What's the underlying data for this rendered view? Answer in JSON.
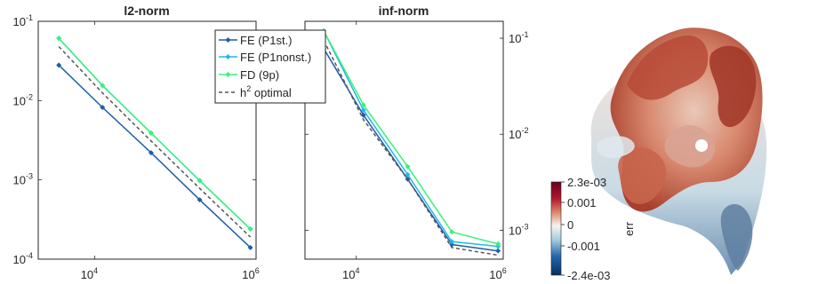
{
  "chart_data": [
    {
      "type": "line",
      "title": "l2-norm",
      "xscale": "log",
      "yscale": "log",
      "xlim": [
        2000,
        1000000
      ],
      "ylim": [
        0.0001,
        0.1
      ],
      "xticks": [
        {
          "base": "10",
          "exp": "4"
        },
        {
          "base": "10",
          "exp": "6"
        }
      ],
      "yticks": [
        {
          "base": "10",
          "exp": "-1"
        },
        {
          "base": "10",
          "exp": "-2"
        },
        {
          "base": "10",
          "exp": "-3"
        },
        {
          "base": "10",
          "exp": "-4"
        }
      ],
      "ytick_side": "left",
      "x": [
        3600,
        12500,
        50000,
        200000,
        850000
      ],
      "series": [
        {
          "name": "FE (P1st.)",
          "color": "#1f5ea8",
          "marker": "diamond",
          "dash": "solid",
          "values": [
            0.028,
            0.0082,
            0.0022,
            0.00056,
            0.00014
          ]
        },
        {
          "name": "FE (P1nonst.)",
          "color": "#21b8e8",
          "marker": "diamond",
          "dash": "solid",
          "values": [
            0.061,
            0.0155,
            0.0039,
            0.00098,
            0.00024
          ]
        },
        {
          "name": "FD (9p)",
          "color": "#3df07a",
          "marker": "diamond",
          "dash": "solid",
          "values": [
            0.061,
            0.0155,
            0.0039,
            0.00098,
            0.00024
          ]
        },
        {
          "name": "h2 optimal",
          "color": "#555555",
          "marker": "none",
          "dash": "dashed",
          "values": [
            0.048,
            0.0125,
            0.0031,
            0.00078,
            0.00019
          ]
        }
      ]
    },
    {
      "type": "line",
      "title": "inf-norm",
      "xscale": "log",
      "yscale": "log",
      "xlim": [
        2000,
        1000000
      ],
      "ylim": [
        0.0005,
        0.15
      ],
      "xticks": [
        {
          "base": "10",
          "exp": "4"
        },
        {
          "base": "10",
          "exp": "6"
        }
      ],
      "yticks": [
        {
          "base": "10",
          "exp": "-1"
        },
        {
          "base": "10",
          "exp": "-2"
        },
        {
          "base": "10",
          "exp": "-3"
        }
      ],
      "ytick_side": "right",
      "x": [
        3600,
        12500,
        50000,
        200000,
        850000
      ],
      "series": [
        {
          "name": "FE (P1st.)",
          "color": "#1f5ea8",
          "marker": "diamond",
          "dash": "solid",
          "values": [
            0.078,
            0.0158,
            0.0034,
            0.00071,
            0.00061
          ]
        },
        {
          "name": "FE (P1nonst.)",
          "color": "#21b8e8",
          "marker": "diamond",
          "dash": "solid",
          "values": [
            0.119,
            0.0178,
            0.0038,
            0.00076,
            0.00068
          ]
        },
        {
          "name": "FD (9p)",
          "color": "#3df07a",
          "marker": "diamond",
          "dash": "solid",
          "values": [
            0.119,
            0.0202,
            0.0046,
            0.00096,
            0.00072
          ]
        },
        {
          "name": "h2 optimal",
          "color": "#555555",
          "marker": "none",
          "dash": "dashed",
          "values": [
            0.095,
            0.0142,
            0.0034,
            0.00066,
            0.00055
          ]
        }
      ]
    }
  ],
  "legend": {
    "placement": "upper middle, overlapping both plots",
    "entries": [
      {
        "label": "FE (P1st.)",
        "color": "#1f5ea8",
        "style": "solid-marker"
      },
      {
        "label": "FE (P1nonst.)",
        "color": "#21b8e8",
        "style": "solid-marker"
      },
      {
        "label": "FD (9p)",
        "color": "#3df07a",
        "style": "solid-marker"
      },
      {
        "label_main": "h",
        "label_sup": "2",
        "label_rest": " optimal",
        "color": "#555555",
        "style": "dashed"
      }
    ]
  },
  "surface_plot": {
    "colorbar_label": "err",
    "colorbar_ticks": [
      "2.3e-03",
      "0.001",
      "0",
      "-0.001",
      "-2.4e-03"
    ],
    "colors": {
      "high": "#67001f",
      "mid": "#f7f7f7",
      "low": "#053061"
    }
  }
}
